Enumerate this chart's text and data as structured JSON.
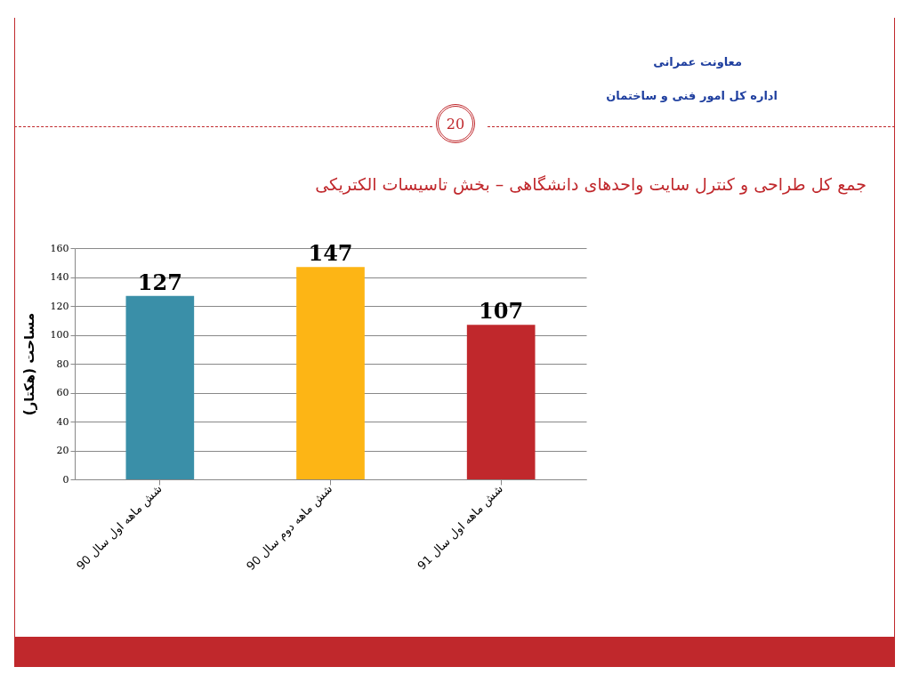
{
  "chart_data": {
    "type": "bar",
    "title": "جمع کل طراحی و کنترل سایت واحدهای دانشگاهی – بخش تاسیسات الکتریکی",
    "ylabel": "مساحت (هکتار)",
    "annotations": [
      "معاونت عمرانی",
      "اداره کل امور فنی و ساختمان",
      "20"
    ],
    "categories": [
      "شش ماهه اول سال 90",
      "شش ماهه دوم سال 90",
      "شش ماهه اول سال 91"
    ],
    "values": [
      127,
      147,
      107
    ],
    "colors": [
      "#3a8fa8",
      "#fdb515",
      "#c0282c"
    ],
    "ylim": [
      0,
      160
    ],
    "yticks": [
      0,
      20,
      40,
      60,
      80,
      100,
      120,
      140,
      160
    ],
    "grid": "y",
    "data_labels": true,
    "legend": false
  }
}
